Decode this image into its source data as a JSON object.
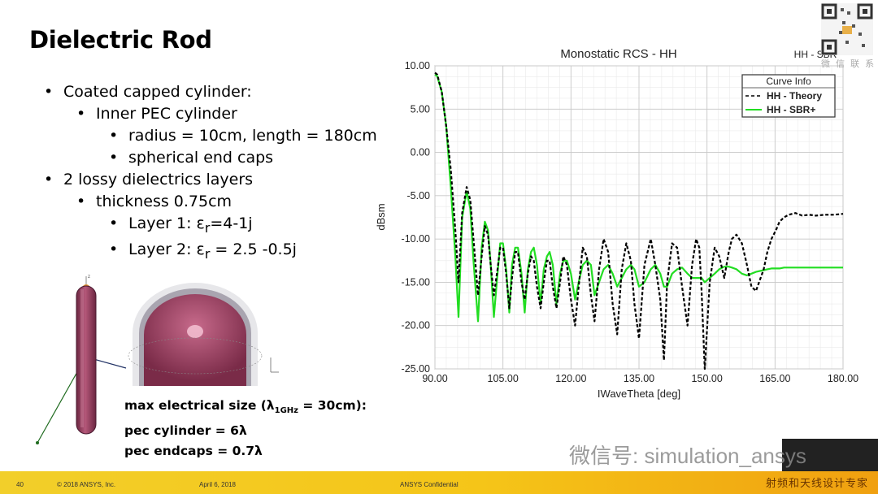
{
  "slide": {
    "title": "Dielectric Rod"
  },
  "bullets": [
    {
      "level": 0,
      "text": "Coated capped cylinder:"
    },
    {
      "level": 1,
      "text": "Inner PEC cylinder"
    },
    {
      "level": 2,
      "text": "radius = 10cm, length = 180cm"
    },
    {
      "level": 2,
      "text": "spherical end caps"
    },
    {
      "level": 0,
      "text": "2 lossy dielectrics layers"
    },
    {
      "level": 1,
      "text": "thickness 0.75cm"
    },
    {
      "level": 2,
      "text_pre": "Layer 1:  ε",
      "sub": "r",
      "text_post": "=4-1j"
    },
    {
      "level": 2,
      "text_pre": "Layer 2: ε",
      "sub": "r",
      "text_post": " = 2.5 -0.5j"
    }
  ],
  "size_notes": {
    "line1_pre": "max electrical size (λ",
    "line1_sub": "1GHz",
    "line1_post": " = 30cm):",
    "line2": "pec cylinder = 6λ",
    "line3": "pec endcaps = 0.7λ"
  },
  "figure": {
    "axis_label": "z"
  },
  "chart_data": {
    "type": "line",
    "title": "Monostatic RCS - HH",
    "subtitle": "HH - SBR",
    "xlabel": "IWaveTheta [deg]",
    "ylabel": "dBsm",
    "xlim": [
      90,
      180
    ],
    "ylim": [
      -25,
      10
    ],
    "xticks": [
      "90.00",
      "105.00",
      "120.00",
      "135.00",
      "150.00",
      "165.00",
      "180.00"
    ],
    "yticks": [
      "10.00",
      "5.00",
      "0.00",
      "-5.00",
      "-10.00",
      "-15.00",
      "-20.00",
      "-25.00"
    ],
    "grid": true,
    "legend": {
      "title": "Curve Info",
      "placement": "top-right"
    },
    "series": [
      {
        "name": "HH - Theory",
        "color": "#000000",
        "style": "dashed",
        "x": [
          90,
          90.5,
          91.5,
          92.5,
          93.5,
          94.5,
          95.2,
          96,
          97,
          97.8,
          98.5,
          99.5,
          100.3,
          101,
          101.7,
          102.3,
          103,
          103.8,
          104.4,
          105,
          105.7,
          106.4,
          107,
          107.7,
          108.3,
          109.1,
          109.8,
          110.5,
          111.2,
          111.8,
          112.5,
          113.3,
          114,
          114.7,
          115.3,
          116,
          116.8,
          117.6,
          118.3,
          119.1,
          120,
          120.9,
          121.7,
          122.6,
          123.5,
          124.4,
          125.2,
          126.2,
          127.2,
          128.2,
          129.2,
          130.2,
          131.2,
          132.2,
          133.2,
          134,
          135,
          136.2,
          137.6,
          138.6,
          139.7,
          140.5,
          141.2,
          142.3,
          143.4,
          144.5,
          145.7,
          146.7,
          147.6,
          148.3,
          148.8,
          149.5,
          150.6,
          151.7,
          152.7,
          153.8,
          154.8,
          155.5,
          156.5,
          157.7,
          158.8,
          159.8,
          160.8,
          162.5,
          163.3,
          164.2,
          165.2,
          166,
          167,
          168,
          169.5,
          171,
          172.5,
          174,
          176,
          178,
          180
        ],
        "y": [
          9.2,
          9.0,
          7.0,
          3.0,
          -2.0,
          -9.0,
          -15.0,
          -7.0,
          -4.0,
          -5.5,
          -10.0,
          -16.5,
          -12.0,
          -8.5,
          -9.5,
          -13.0,
          -16.5,
          -13.5,
          -11.0,
          -11.0,
          -14.0,
          -18.0,
          -14.5,
          -11.5,
          -11.5,
          -15.0,
          -17.0,
          -14.0,
          -12.0,
          -12.5,
          -15.5,
          -18.0,
          -15.0,
          -12.5,
          -12.5,
          -15.5,
          -18.0,
          -15.0,
          -12.0,
          -13.0,
          -17.0,
          -20.0,
          -15.5,
          -11.0,
          -12.0,
          -16.5,
          -19.5,
          -13.5,
          -10.0,
          -11.5,
          -17.5,
          -21.0,
          -13.5,
          -10.5,
          -12.5,
          -17.5,
          -21.5,
          -13.0,
          -10.0,
          -13.0,
          -17.0,
          -24.0,
          -15.0,
          -10.5,
          -11.0,
          -15.5,
          -20.0,
          -13.0,
          -10.0,
          -11.0,
          -16.0,
          -25.0,
          -15.0,
          -11.0,
          -12.0,
          -14.5,
          -11.5,
          -10.0,
          -9.5,
          -10.5,
          -13.0,
          -15.5,
          -16.0,
          -13.5,
          -11.5,
          -10.0,
          -9.0,
          -8.0,
          -7.5,
          -7.2,
          -7.0,
          -7.3,
          -7.2,
          -7.3,
          -7.2,
          -7.2,
          -7.1
        ]
      },
      {
        "name": "HH - SBR+",
        "color": "#22dd22",
        "style": "solid",
        "x": [
          90,
          90.5,
          91.5,
          92.5,
          93.5,
          94.5,
          95.2,
          96,
          97,
          97.8,
          98.5,
          99.5,
          100.3,
          101,
          101.7,
          102.3,
          103,
          103.8,
          104.4,
          105,
          105.7,
          106.4,
          107,
          107.7,
          108.3,
          109.1,
          109.8,
          110.5,
          111.2,
          111.8,
          112.5,
          113.3,
          114,
          114.7,
          115.3,
          116,
          116.8,
          117.6,
          118.3,
          119.1,
          120,
          120.9,
          121.7,
          122.6,
          123.5,
          124.4,
          125.2,
          126.2,
          127.2,
          128.2,
          129.2,
          130.2,
          131.2,
          132.2,
          133.2,
          134,
          135,
          136.2,
          137.6,
          138.6,
          139.7,
          140.5,
          141.2,
          142.3,
          143.4,
          144.5,
          145.7,
          146.7,
          147.6,
          148.3,
          148.8,
          149.5,
          150.6,
          151.7,
          152.7,
          153.8,
          154.8,
          155.5,
          156.5,
          157.7,
          158.8,
          159.8,
          160.8,
          162.5,
          163.3,
          164.2,
          165.2,
          166,
          167,
          168,
          169.5,
          171,
          172.5,
          174,
          176,
          178,
          180
        ],
        "y": [
          9.0,
          8.8,
          7.0,
          3.0,
          -4.0,
          -12.0,
          -19.0,
          -7.5,
          -4.5,
          -6.5,
          -12.5,
          -19.5,
          -11.0,
          -8.0,
          -9.0,
          -13.0,
          -19.0,
          -14.0,
          -10.5,
          -10.5,
          -13.5,
          -18.5,
          -13.0,
          -11.0,
          -11.0,
          -14.0,
          -18.5,
          -13.5,
          -11.5,
          -11.0,
          -13.0,
          -17.5,
          -13.5,
          -12.0,
          -11.5,
          -13.0,
          -17.5,
          -14.0,
          -12.5,
          -12.5,
          -14.0,
          -17.0,
          -15.0,
          -13.0,
          -12.5,
          -13.0,
          -16.5,
          -15.0,
          -13.5,
          -13.0,
          -14.0,
          -15.5,
          -14.5,
          -13.5,
          -13.0,
          -13.5,
          -15.5,
          -15.0,
          -13.5,
          -13.0,
          -14.0,
          -15.5,
          -15.5,
          -14.0,
          -13.5,
          -13.3,
          -14.0,
          -14.5,
          -14.5,
          -14.5,
          -14.5,
          -15.0,
          -14.5,
          -14.0,
          -13.5,
          -13.2,
          -13.2,
          -13.3,
          -13.5,
          -14.0,
          -14.2,
          -14.0,
          -13.8,
          -13.6,
          -13.5,
          -13.4,
          -13.4,
          -13.4,
          -13.3,
          -13.3,
          -13.3,
          -13.3,
          -13.3,
          -13.3,
          -13.3,
          -13.3,
          -13.3
        ]
      }
    ]
  },
  "watermark": {
    "text": "微信号: simulation_ansys"
  },
  "qr": {
    "caption": "微 信 联 系"
  },
  "footer": {
    "page": "40",
    "copyright": "© 2018 ANSYS, Inc.",
    "date": "April 6, 2018",
    "confidential": "ANSYS Confidential",
    "brand": "射频和天线设计专家"
  }
}
